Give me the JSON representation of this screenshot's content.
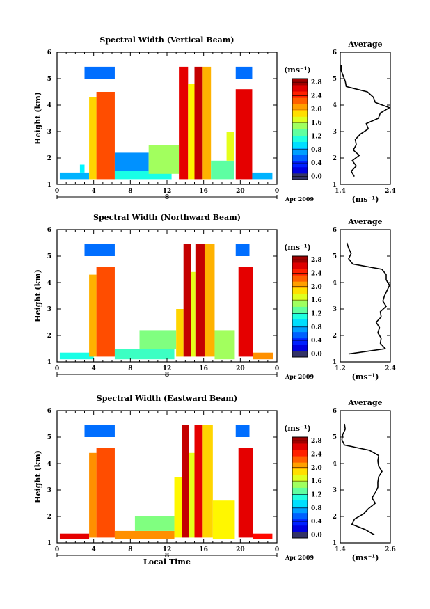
{
  "chart_data": [
    {
      "type": "heatmap",
      "title": "Spectral Width (Vertical Beam)",
      "xlabel": "",
      "ylabel": "Height (km)",
      "xlim": [
        0,
        24
      ],
      "ylim": [
        1,
        6
      ],
      "x_ticks": [
        "0",
        "4",
        "8",
        "12",
        "16",
        "20",
        "0"
      ],
      "y_ticks": [
        "1",
        "2",
        "3",
        "4",
        "5",
        "6"
      ],
      "date_day": "8",
      "date_label": "Apr 2009",
      "colorbar": {
        "unit_label": "(ms⁻¹)",
        "ticks": [
          "0.0",
          "0.4",
          "0.8",
          "1.2",
          "1.6",
          "2.0",
          "2.4",
          "2.8"
        ],
        "min": 0,
        "max": 3.0
      },
      "blocks": [
        {
          "t0": 0.3,
          "t1": 3.5,
          "h0": 1.2,
          "h1": 1.45,
          "v": 0.9
        },
        {
          "t0": 2.5,
          "t1": 3.0,
          "h0": 1.45,
          "h1": 1.75,
          "v": 1.1
        },
        {
          "t0": 3.0,
          "t1": 6.3,
          "h0": 5.0,
          "h1": 5.45,
          "v": 0.7
        },
        {
          "t0": 3.5,
          "t1": 4.3,
          "h0": 1.2,
          "h1": 4.3,
          "v": 2.0
        },
        {
          "t0": 4.3,
          "t1": 6.3,
          "h0": 1.2,
          "h1": 4.5,
          "v": 2.4
        },
        {
          "t0": 6.3,
          "t1": 10.0,
          "h0": 1.5,
          "h1": 2.2,
          "v": 0.8
        },
        {
          "t0": 6.3,
          "t1": 12.5,
          "h0": 1.2,
          "h1": 1.5,
          "v": 1.2
        },
        {
          "t0": 10.0,
          "t1": 13.3,
          "h0": 1.4,
          "h1": 2.5,
          "v": 1.6
        },
        {
          "t0": 13.3,
          "t1": 14.3,
          "h0": 1.2,
          "h1": 5.45,
          "v": 2.7
        },
        {
          "t0": 14.3,
          "t1": 15.0,
          "h0": 1.2,
          "h1": 4.8,
          "v": 1.9
        },
        {
          "t0": 15.0,
          "t1": 15.9,
          "h0": 1.2,
          "h1": 5.45,
          "v": 2.8
        },
        {
          "t0": 15.9,
          "t1": 16.8,
          "h0": 1.2,
          "h1": 5.45,
          "v": 2.1
        },
        {
          "t0": 16.8,
          "t1": 19.3,
          "h0": 1.2,
          "h1": 1.9,
          "v": 1.4
        },
        {
          "t0": 18.5,
          "t1": 19.3,
          "h0": 1.9,
          "h1": 3.0,
          "v": 1.8
        },
        {
          "t0": 19.5,
          "t1": 21.3,
          "h0": 5.0,
          "h1": 5.45,
          "v": 0.7
        },
        {
          "t0": 19.5,
          "t1": 21.3,
          "h0": 1.2,
          "h1": 4.6,
          "v": 2.7
        },
        {
          "t0": 21.3,
          "t1": 23.5,
          "h0": 1.2,
          "h1": 1.45,
          "v": 0.9
        }
      ],
      "average": {
        "title": "Average",
        "xlabel": "(ms⁻¹)",
        "xlim": [
          1.4,
          2.4
        ],
        "x_ticks": [
          "1.4",
          "2.4"
        ],
        "y_ticks": [
          "1",
          "2",
          "3",
          "4",
          "5",
          "6"
        ],
        "heights": [
          1.3,
          1.5,
          1.7,
          1.9,
          2.1,
          2.3,
          2.5,
          2.7,
          2.9,
          3.1,
          3.3,
          3.5,
          3.7,
          3.9,
          4.1,
          4.3,
          4.5,
          4.7,
          4.9,
          5.1,
          5.3,
          5.5
        ],
        "values": [
          1.68,
          1.62,
          1.72,
          1.64,
          1.78,
          1.66,
          1.72,
          1.7,
          1.8,
          1.96,
          1.92,
          2.16,
          2.2,
          2.38,
          2.1,
          2.06,
          1.94,
          1.52,
          1.5,
          1.46,
          1.42,
          1.42
        ]
      }
    },
    {
      "type": "heatmap",
      "title": "Spectral Width (Northward Beam)",
      "xlabel": "",
      "ylabel": "Height (km)",
      "xlim": [
        0,
        24
      ],
      "ylim": [
        1,
        6
      ],
      "x_ticks": [
        "0",
        "4",
        "8",
        "12",
        "16",
        "20",
        "0"
      ],
      "y_ticks": [
        "1",
        "2",
        "3",
        "4",
        "5",
        "6"
      ],
      "date_day": "8",
      "date_label": "Apr 2009",
      "colorbar": {
        "unit_label": "(ms⁻¹)",
        "ticks": [
          "0.0",
          "0.4",
          "0.8",
          "1.2",
          "1.6",
          "2.0",
          "2.4",
          "2.8"
        ],
        "min": 0,
        "max": 3.0
      },
      "blocks": [
        {
          "t0": 0.3,
          "t1": 4.0,
          "h0": 1.1,
          "h1": 1.35,
          "v": 1.2
        },
        {
          "t0": 3.0,
          "t1": 6.3,
          "h0": 5.0,
          "h1": 5.45,
          "v": 0.7
        },
        {
          "t0": 3.5,
          "t1": 4.3,
          "h0": 1.2,
          "h1": 4.3,
          "v": 2.1
        },
        {
          "t0": 4.3,
          "t1": 6.3,
          "h0": 1.2,
          "h1": 4.6,
          "v": 2.4
        },
        {
          "t0": 6.3,
          "t1": 12.8,
          "h0": 1.1,
          "h1": 1.5,
          "v": 1.3
        },
        {
          "t0": 9.0,
          "t1": 13.0,
          "h0": 1.5,
          "h1": 2.2,
          "v": 1.5
        },
        {
          "t0": 13.0,
          "t1": 13.8,
          "h0": 1.2,
          "h1": 3.0,
          "v": 2.0
        },
        {
          "t0": 13.8,
          "t1": 14.6,
          "h0": 1.2,
          "h1": 5.45,
          "v": 2.8
        },
        {
          "t0": 14.6,
          "t1": 15.1,
          "h0": 1.2,
          "h1": 4.4,
          "v": 1.8
        },
        {
          "t0": 15.1,
          "t1": 16.1,
          "h0": 1.2,
          "h1": 5.45,
          "v": 2.8
        },
        {
          "t0": 16.1,
          "t1": 17.2,
          "h0": 1.2,
          "h1": 5.45,
          "v": 2.1
        },
        {
          "t0": 17.2,
          "t1": 19.4,
          "h0": 1.1,
          "h1": 2.2,
          "v": 1.6
        },
        {
          "t0": 19.5,
          "t1": 21.0,
          "h0": 5.0,
          "h1": 5.45,
          "v": 0.7
        },
        {
          "t0": 19.8,
          "t1": 21.4,
          "h0": 1.2,
          "h1": 4.6,
          "v": 2.7
        },
        {
          "t0": 21.4,
          "t1": 23.6,
          "h0": 1.1,
          "h1": 1.35,
          "v": 2.2
        }
      ],
      "average": {
        "title": "Average",
        "xlabel": "(ms⁻¹)",
        "xlim": [
          1.2,
          2.4
        ],
        "x_ticks": [
          "1.2",
          "2.4"
        ],
        "y_ticks": [
          "1",
          "2",
          "3",
          "4",
          "5",
          "6"
        ],
        "heights": [
          1.3,
          1.5,
          1.7,
          1.9,
          2.1,
          2.3,
          2.5,
          2.7,
          2.9,
          3.1,
          3.3,
          3.5,
          3.7,
          3.9,
          4.1,
          4.3,
          4.5,
          4.7,
          4.9,
          5.1,
          5.3,
          5.5
        ],
        "values": [
          1.4,
          2.28,
          2.16,
          2.18,
          2.1,
          2.14,
          2.06,
          2.18,
          2.16,
          2.3,
          2.22,
          2.26,
          2.32,
          2.38,
          2.3,
          2.3,
          2.2,
          1.5,
          1.4,
          1.46,
          1.4,
          1.36
        ]
      }
    },
    {
      "type": "heatmap",
      "title": "Spectral Width (Eastward Beam)",
      "xlabel": "Local Time",
      "ylabel": "Height (km)",
      "xlim": [
        0,
        24
      ],
      "ylim": [
        1,
        6
      ],
      "x_ticks": [
        "0",
        "4",
        "8",
        "12",
        "16",
        "20",
        "0"
      ],
      "y_ticks": [
        "1",
        "2",
        "3",
        "4",
        "5",
        "6"
      ],
      "date_day": "8",
      "date_label": "Apr 2009",
      "colorbar": {
        "unit_label": "(ms⁻¹)",
        "ticks": [
          "0.0",
          "0.4",
          "0.8",
          "1.2",
          "1.6",
          "2.0",
          "2.4",
          "2.8"
        ],
        "min": 0,
        "max": 3.0
      },
      "blocks": [
        {
          "t0": 0.3,
          "t1": 3.5,
          "h0": 1.15,
          "h1": 1.35,
          "v": 2.7
        },
        {
          "t0": 3.0,
          "t1": 6.3,
          "h0": 5.0,
          "h1": 5.45,
          "v": 0.7
        },
        {
          "t0": 3.5,
          "t1": 4.3,
          "h0": 1.2,
          "h1": 4.4,
          "v": 2.2
        },
        {
          "t0": 4.3,
          "t1": 6.3,
          "h0": 1.2,
          "h1": 4.6,
          "v": 2.4
        },
        {
          "t0": 6.3,
          "t1": 12.8,
          "h0": 1.15,
          "h1": 1.45,
          "v": 2.2
        },
        {
          "t0": 8.5,
          "t1": 12.8,
          "h0": 1.45,
          "h1": 2.0,
          "v": 1.5
        },
        {
          "t0": 12.8,
          "t1": 13.6,
          "h0": 1.2,
          "h1": 3.5,
          "v": 1.9
        },
        {
          "t0": 13.6,
          "t1": 14.4,
          "h0": 1.2,
          "h1": 5.45,
          "v": 2.8
        },
        {
          "t0": 14.4,
          "t1": 15.0,
          "h0": 1.2,
          "h1": 4.4,
          "v": 1.8
        },
        {
          "t0": 15.0,
          "t1": 15.9,
          "h0": 1.2,
          "h1": 5.45,
          "v": 2.7
        },
        {
          "t0": 15.9,
          "t1": 17.0,
          "h0": 1.2,
          "h1": 5.45,
          "v": 2.0
        },
        {
          "t0": 17.0,
          "t1": 19.4,
          "h0": 1.15,
          "h1": 2.6,
          "v": 1.9
        },
        {
          "t0": 19.5,
          "t1": 21.0,
          "h0": 5.0,
          "h1": 5.45,
          "v": 0.7
        },
        {
          "t0": 19.8,
          "t1": 21.4,
          "h0": 1.2,
          "h1": 4.6,
          "v": 2.7
        },
        {
          "t0": 21.4,
          "t1": 23.5,
          "h0": 1.15,
          "h1": 1.35,
          "v": 2.6
        }
      ],
      "average": {
        "title": "Average",
        "xlabel": "(ms⁻¹)",
        "xlim": [
          1.4,
          2.6
        ],
        "x_ticks": [
          "1.4",
          "2.6"
        ],
        "y_ticks": [
          "1",
          "2",
          "3",
          "4",
          "5",
          "6"
        ],
        "heights": [
          1.3,
          1.5,
          1.7,
          1.9,
          2.1,
          2.3,
          2.5,
          2.7,
          2.9,
          3.1,
          3.3,
          3.5,
          3.7,
          3.9,
          4.1,
          4.3,
          4.5,
          4.7,
          4.9,
          5.1,
          5.3,
          5.5
        ],
        "values": [
          2.22,
          2.0,
          1.68,
          1.74,
          1.96,
          2.08,
          2.24,
          2.16,
          2.24,
          2.3,
          2.3,
          2.32,
          2.4,
          2.32,
          2.3,
          2.32,
          2.1,
          1.5,
          1.44,
          1.46,
          1.52,
          1.5
        ]
      }
    }
  ]
}
